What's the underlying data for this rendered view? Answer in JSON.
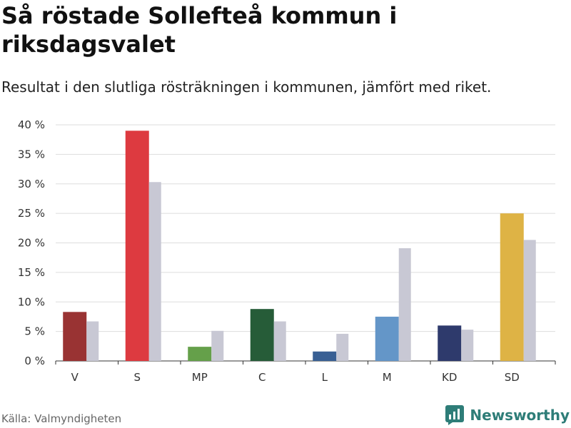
{
  "title": "Så röstade Sollefteå kommun i riksdagsvalet",
  "subtitle": "Resultat i den slutliga rösträkningen i kommunen, jämfört med riket.",
  "source": "Källa: Valmyndigheten",
  "brand": {
    "name": "Newsworthy",
    "icon": "newsworthy-logo-icon"
  },
  "colors": {
    "comparison": "#c8c8d4",
    "grid": "#dddddd",
    "axis": "#333333"
  },
  "chart_data": {
    "type": "bar",
    "title": "Så röstade Sollefteå kommun i riksdagsvalet",
    "subtitle": "Resultat i den slutliga rösträkningen i kommunen, jämfört med riket.",
    "xlabel": "",
    "ylabel": "",
    "ylim": [
      0,
      40
    ],
    "yticks": [
      0,
      5,
      10,
      15,
      20,
      25,
      30,
      35,
      40
    ],
    "ytick_labels": [
      "0 %",
      "5 %",
      "10 %",
      "15 %",
      "20 %",
      "25 %",
      "30 %",
      "35 %",
      "40 %"
    ],
    "grid": true,
    "categories": [
      "V",
      "S",
      "MP",
      "C",
      "L",
      "M",
      "KD",
      "SD"
    ],
    "series": [
      {
        "name": "Sollefteå kommun",
        "values": [
          8.3,
          39.0,
          2.4,
          8.8,
          1.6,
          7.5,
          6.0,
          25.0
        ],
        "colors": [
          "#993333",
          "#dd3a40",
          "#65a04a",
          "#265c38",
          "#396094",
          "#6496c8",
          "#2e3a6c",
          "#deb345"
        ]
      },
      {
        "name": "Riket",
        "values": [
          6.7,
          30.3,
          5.1,
          6.7,
          4.6,
          19.1,
          5.3,
          20.5
        ],
        "colors": [
          "#c8c8d4",
          "#c8c8d4",
          "#c8c8d4",
          "#c8c8d4",
          "#c8c8d4",
          "#c8c8d4",
          "#c8c8d4",
          "#c8c8d4"
        ]
      }
    ]
  }
}
